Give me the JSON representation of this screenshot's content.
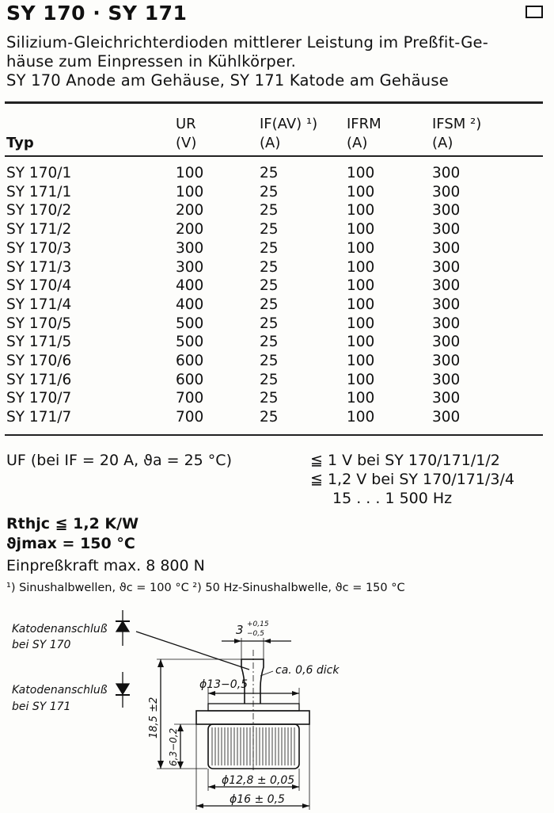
{
  "title": "SY 170 · SY 171",
  "description": [
    "Silizium-Gleichrichterdioden mittlerer Leistung im Preßfit-Ge-",
    "häuse zum Einpressen in Kühlkörper.",
    "SY 170 Anode am Gehäuse, SY 171 Katode am Gehäuse"
  ],
  "table": {
    "headers": [
      {
        "symbol": "Typ",
        "unit": ""
      },
      {
        "symbol": "UR",
        "unit": "(V)"
      },
      {
        "symbol": "IF(AV) ¹)",
        "unit": "(A)"
      },
      {
        "symbol": "IFRM",
        "unit": "(A)"
      },
      {
        "symbol": "IFSM ²)",
        "unit": "(A)"
      }
    ],
    "rows": [
      [
        "SY 170/1",
        "100",
        "25",
        "100",
        "300"
      ],
      [
        "SY 171/1",
        "100",
        "25",
        "100",
        "300"
      ],
      [
        "SY 170/2",
        "200",
        "25",
        "100",
        "300"
      ],
      [
        "SY 171/2",
        "200",
        "25",
        "100",
        "300"
      ],
      [
        "SY 170/3",
        "300",
        "25",
        "100",
        "300"
      ],
      [
        "SY 171/3",
        "300",
        "25",
        "100",
        "300"
      ],
      [
        "SY 170/4",
        "400",
        "25",
        "100",
        "300"
      ],
      [
        "SY 171/4",
        "400",
        "25",
        "100",
        "300"
      ],
      [
        "SY 170/5",
        "500",
        "25",
        "100",
        "300"
      ],
      [
        "SY 171/5",
        "500",
        "25",
        "100",
        "300"
      ],
      [
        "SY 170/6",
        "600",
        "25",
        "100",
        "300"
      ],
      [
        "SY 171/6",
        "600",
        "25",
        "100",
        "300"
      ],
      [
        "SY 170/7",
        "700",
        "25",
        "100",
        "300"
      ],
      [
        "SY 171/7",
        "700",
        "25",
        "100",
        "300"
      ]
    ]
  },
  "specs": {
    "uf_label": "UF  (bei IF = 20 A, ϑa = 25 °C)",
    "uf_values": [
      "≦ 1 V bei SY 170/171/1/2",
      "≦ 1,2 V bei SY 170/171/3/4",
      "15 . . . 1 500 Hz"
    ],
    "rthjc": "Rthjc ≦ 1,2 K/W",
    "tjmax": "ϑjmax  = 150 °C",
    "einpress": "Einpreßkraft max. 8 800 N",
    "footnotes": "¹) Sinushalbwellen, ϑc = 100 °C   ²) 50 Hz-Sinushalbwelle, ϑc = 150 °C"
  },
  "drawing": {
    "label_sy170": [
      "Katodenanschluß",
      "bei SY 170"
    ],
    "label_sy171": [
      "Katodenanschluß",
      "bei SY 171"
    ],
    "dim_tab_width": "3",
    "dim_tab_tol_upper": "+0,15",
    "dim_tab_tol_lower": "−0,5",
    "dim_thickness": "ca. 0,6 dick",
    "dim_flange": "ϕ13−0,5",
    "dim_height": "18,5 ±2",
    "dim_body_height": "6,3−0,2",
    "dim_body_dia": "ϕ12,8 ± 0,05",
    "dim_outer_dia": "ϕ16 ± 0,5"
  }
}
